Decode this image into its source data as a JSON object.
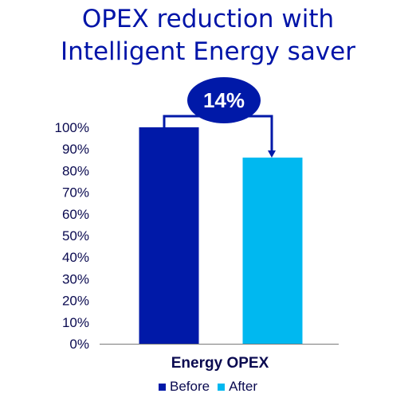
{
  "chart_data": {
    "type": "bar",
    "title_lines": [
      "OPEX reduction with",
      "Intelligent Energy saver"
    ],
    "categories": [
      "Energy OPEX"
    ],
    "series": [
      {
        "name": "Before",
        "values": [
          100
        ],
        "color": "#0019a8"
      },
      {
        "name": "After",
        "values": [
          86
        ],
        "color": "#00b8f0"
      }
    ],
    "ylim": [
      0,
      100
    ],
    "yticks": [
      "0%",
      "10%",
      "20%",
      "30%",
      "40%",
      "50%",
      "60%",
      "70%",
      "80%",
      "90%",
      "100%"
    ],
    "annotation": "14%",
    "annotation_color": "#0019a8",
    "grid": false,
    "legend_position": "bottom"
  }
}
